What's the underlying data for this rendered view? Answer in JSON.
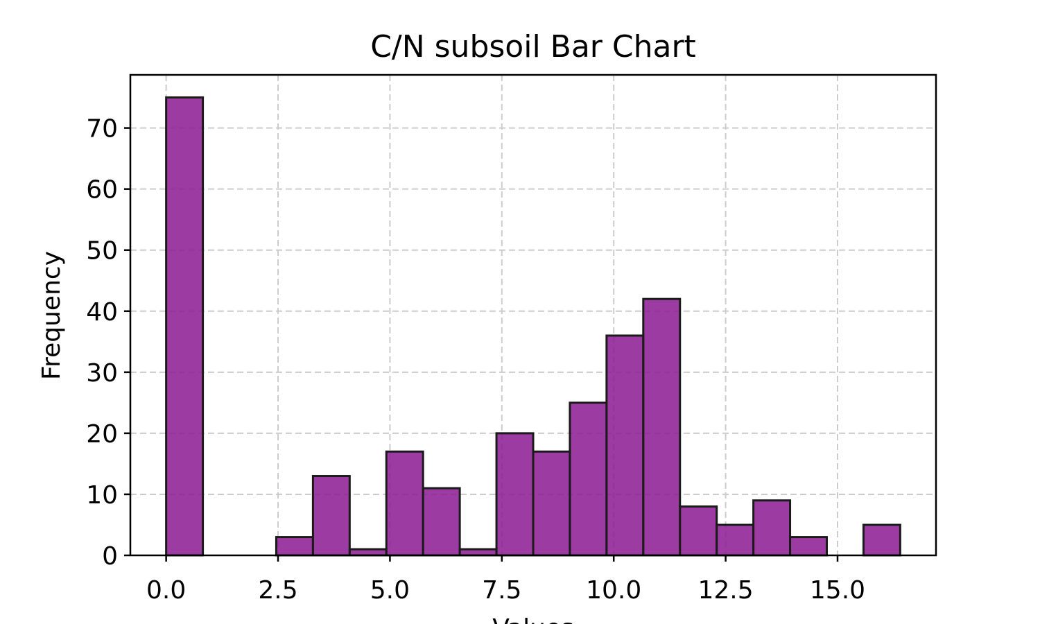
{
  "chart_data": {
    "type": "bar",
    "title": "C/N subsoil Bar Chart",
    "xlabel": "Values",
    "ylabel": "Frequency",
    "xlim": [
      -0.8,
      17.2
    ],
    "ylim": [
      0,
      78.7
    ],
    "grid": true,
    "bar_color": "#8b1a92",
    "edge_color": "#1a1a1a",
    "bin_edges": [
      0.0,
      0.82,
      1.64,
      2.46,
      3.28,
      4.1,
      4.92,
      5.74,
      6.56,
      7.38,
      8.2,
      9.02,
      9.84,
      10.66,
      11.48,
      12.3,
      13.12,
      13.94,
      14.76,
      15.58,
      16.4
    ],
    "values": [
      75,
      0,
      0,
      3,
      13,
      1,
      17,
      11,
      1,
      20,
      17,
      25,
      36,
      42,
      8,
      5,
      9,
      3,
      0,
      5
    ],
    "xticks": [
      0.0,
      2.5,
      5.0,
      7.5,
      10.0,
      12.5,
      15.0
    ],
    "xtick_labels": [
      "0.0",
      "2.5",
      "5.0",
      "7.5",
      "10.0",
      "12.5",
      "15.0"
    ],
    "yticks": [
      0,
      10,
      20,
      30,
      40,
      50,
      60,
      70
    ],
    "ytick_labels": [
      "0",
      "10",
      "20",
      "30",
      "40",
      "50",
      "60",
      "70"
    ]
  }
}
